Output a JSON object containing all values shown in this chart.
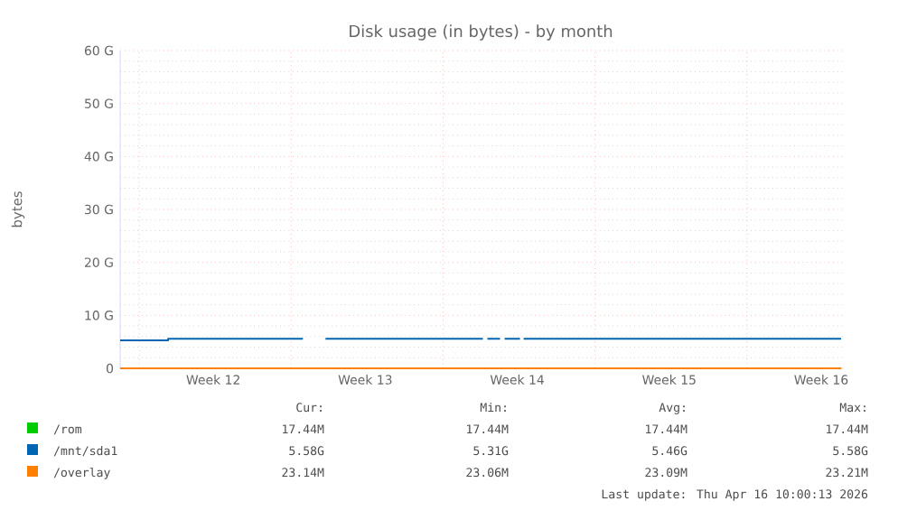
{
  "chart_data": {
    "type": "line",
    "title": "Disk usage (in bytes) - by month",
    "ylabel": "bytes",
    "xlim": [
      "2026-03-15T03:00",
      "2026-04-17T10:00"
    ],
    "xticks": [
      {
        "value": "2026-03-16",
        "label": null
      },
      {
        "value": "2026-03-19T10:00",
        "label": "Week 12"
      },
      {
        "value": "2026-03-23",
        "label": null
      },
      {
        "value": "2026-03-26T10:00",
        "label": "Week 13"
      },
      {
        "value": "2026-03-30",
        "label": null
      },
      {
        "value": "2026-04-02T10:00",
        "label": "Week 14"
      },
      {
        "value": "2026-04-06",
        "label": null
      },
      {
        "value": "2026-04-09T10:00",
        "label": "Week 15"
      },
      {
        "value": "2026-04-13",
        "label": null
      },
      {
        "value": "2026-04-16T10:00",
        "label": "Week 16"
      }
    ],
    "ylim": [
      0,
      60
    ],
    "yticks": [
      0,
      {
        "value": 10,
        "label": "10 G"
      },
      {
        "value": 20,
        "label": "20 G"
      },
      {
        "value": 30,
        "label": "30 G"
      },
      {
        "value": 40,
        "label": "40 G"
      },
      {
        "value": 50,
        "label": "50 G"
      },
      {
        "value": 60,
        "label": "60 G"
      }
    ],
    "grid": true,
    "legend": "bottom",
    "series": [
      {
        "name": "/rom",
        "color": "#00cc00"
      },
      {
        "name": "/mnt/sda1",
        "color": "#0066b3",
        "x": [
          "2026-03-15T03:00",
          "2026-03-17T08:00",
          "2026-03-17T08:00",
          "2026-03-23T13:00",
          "2026-03-23T14:00",
          "2026-03-24T14:00",
          "2026-03-31T20:00",
          "2026-03-31T21:00",
          "2026-04-01T01:00",
          "2026-04-01T15:00",
          "2026-04-01T16:00",
          "2026-04-01T20:00",
          "2026-04-02T13:00",
          "2026-04-02T14:00",
          "2026-04-02T17:00",
          "2026-04-17T08:00"
        ],
        "values": [
          5.3,
          5.3,
          5.6,
          5.6,
          null,
          5.6,
          5.6,
          null,
          5.6,
          5.6,
          null,
          5.6,
          5.6,
          null,
          5.6,
          5.6
        ]
      },
      {
        "name": "/overlay",
        "color": "#ff8000",
        "x": [
          "2026-03-15T03:00",
          "2026-04-17T08:00"
        ],
        "values": [
          0,
          0
        ]
      }
    ],
    "annotations": [
      "Cur:",
      "Min:",
      "Avg:",
      "Max:",
      "17.44M",
      "17.44M",
      "17.44M",
      "17.44M",
      "5.58G",
      "5.31G",
      "5.46G",
      "5.58G",
      "23.14M",
      "23.06M",
      "23.09M",
      "23.21M",
      "Last update: Thu Apr 16 10:00:13 2026"
    ]
  }
}
